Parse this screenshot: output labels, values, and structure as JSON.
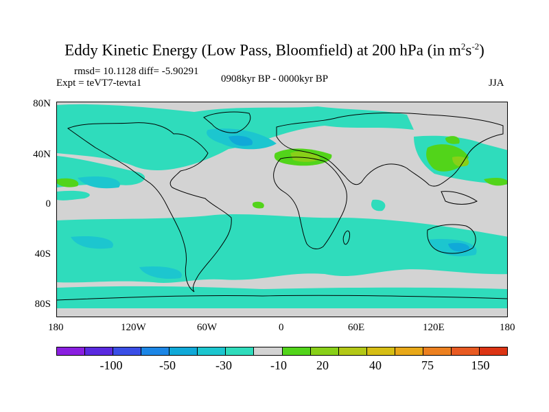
{
  "title_main": "Eddy Kinetic Energy (Low Pass, Bloomfield) at 200 hPa (in m",
  "title_sup1": "2",
  "title_mid": "s",
  "title_sup2": "-2",
  "title_end": ")",
  "stats": "rmsd= 10.1128 diff= -5.90291",
  "experiment": "Expt = teVT7-tevta1",
  "period": "0908kyr BP - 0000kyr BP",
  "season": "JJA",
  "lat_labels": [
    "80N",
    "40N",
    "0",
    "40S",
    "80S"
  ],
  "lon_labels": [
    "180",
    "120W",
    "60W",
    "0",
    "60E",
    "120E",
    "180"
  ],
  "colorbar": {
    "colors": [
      "#8a1fe0",
      "#5a2ae0",
      "#3a4ee6",
      "#1c86e6",
      "#10a9d8",
      "#1cc6cf",
      "#2fdcbc",
      "#d3d3d3",
      "#52d41a",
      "#88d018",
      "#b3c816",
      "#d6be14",
      "#e8a818",
      "#ec8020",
      "#e85a22",
      "#dc3414"
    ],
    "labels": [
      "-100",
      "-50",
      "-30",
      "-10",
      "20",
      "40",
      "75",
      "150"
    ]
  },
  "map_colors": {
    "background": "#d3d3d3",
    "weak_negative": "#2fdcbc",
    "medium_negative": "#1cc6cf",
    "strong_negative": "#10a9d8",
    "weak_positive": "#52d41a",
    "medium_positive": "#88d018"
  }
}
